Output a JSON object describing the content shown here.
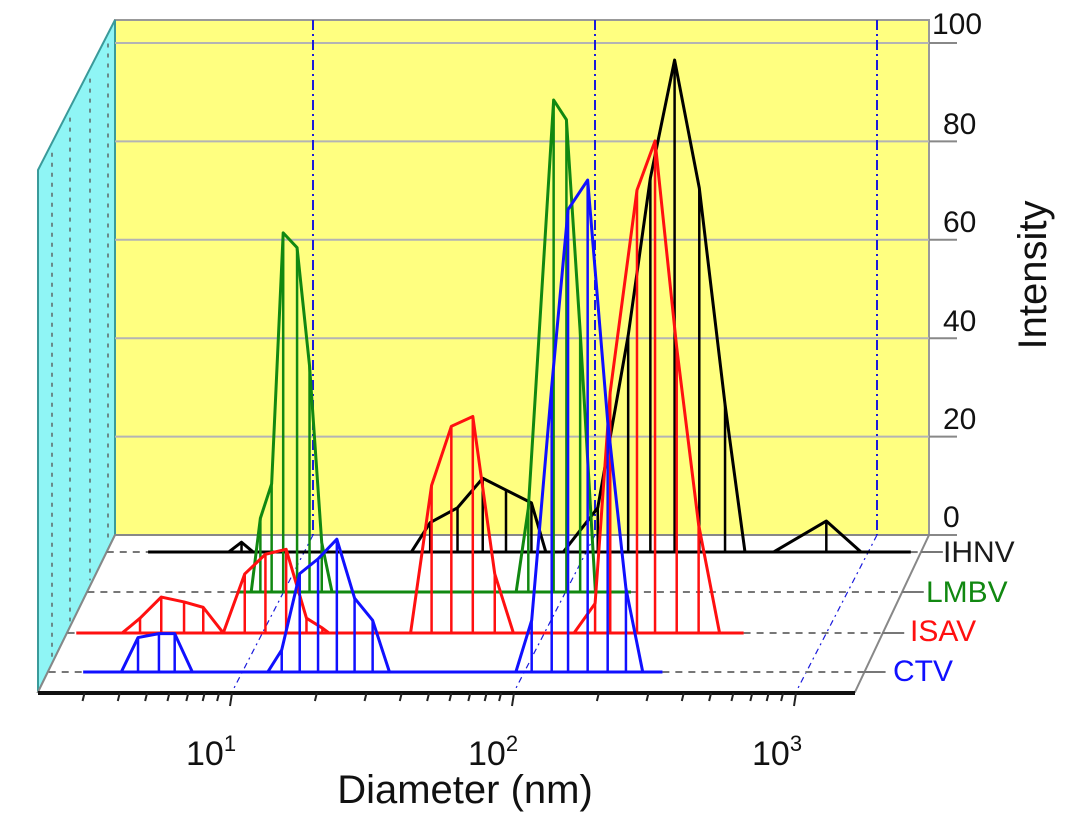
{
  "chart_data": {
    "type": "line",
    "subtype": "3d-waterfall-stem",
    "xlabel": "Diameter (nm)",
    "ylabel": "Intensity",
    "xscale": "log",
    "xlim": [
      2,
      2000
    ],
    "ylim": [
      0,
      100
    ],
    "yticks": [
      "0",
      "20",
      "40",
      "60",
      "80",
      "100"
    ],
    "xticks": [
      {
        "value": 10,
        "base": "10",
        "exp": "1"
      },
      {
        "value": 100,
        "base": "10",
        "exp": "2"
      },
      {
        "value": 1000,
        "base": "10",
        "exp": "3"
      }
    ],
    "grid": true,
    "legend_placement": "right, beside each series baseline",
    "colors": {
      "wall": "#ffff80",
      "side_wall": "#8ff5f5",
      "grid": "#b4b4b4",
      "decade_lines": "#1a1adc"
    },
    "series": [
      {
        "name": "IHNV",
        "color": "#000000",
        "points": [
          [
            2.8,
            0
          ],
          [
            5.4,
            0
          ],
          [
            6.0,
            2
          ],
          [
            6.6,
            0
          ],
          [
            24,
            0
          ],
          [
            28,
            6
          ],
          [
            35,
            9
          ],
          [
            43,
            15
          ],
          [
            52,
            12.6
          ],
          [
            64,
            10
          ],
          [
            72,
            0
          ],
          [
            83,
            0
          ],
          [
            110,
            9
          ],
          [
            141,
            44
          ],
          [
            169,
            76
          ],
          [
            206,
            100
          ],
          [
            252,
            74
          ],
          [
            311,
            30
          ],
          [
            366,
            0
          ],
          [
            462,
            0
          ],
          [
            711,
            6.3
          ],
          [
            944,
            0
          ],
          [
            1416,
            0
          ]
        ]
      },
      {
        "name": "LMBV",
        "color": "#118811",
        "points": [
          [
            6.9,
            0
          ],
          [
            7.7,
            0
          ],
          [
            8.3,
            15
          ],
          [
            9.1,
            22
          ],
          [
            10,
            73
          ],
          [
            11.2,
            70
          ],
          [
            12.4,
            46
          ],
          [
            13.7,
            10
          ],
          [
            14.9,
            0
          ],
          [
            67,
            0
          ],
          [
            74,
            17
          ],
          [
            91,
            100
          ],
          [
            101,
            96
          ],
          [
            113,
            53
          ],
          [
            128,
            0
          ],
          [
            171,
            0
          ]
        ]
      },
      {
        "name": "ISAV",
        "color": "#ff1010",
        "points": [
          [
            2.2,
            0
          ],
          [
            3.2,
            0
          ],
          [
            3.7,
            3
          ],
          [
            4.4,
            7.3
          ],
          [
            5.3,
            6.3
          ],
          [
            6.2,
            5.2
          ],
          [
            7.3,
            0
          ],
          [
            8.7,
            12
          ],
          [
            10.3,
            16
          ],
          [
            12.2,
            17
          ],
          [
            14.4,
            3
          ],
          [
            16.4,
            1
          ],
          [
            17.3,
            0
          ],
          [
            33.7,
            0
          ],
          [
            40,
            30
          ],
          [
            47,
            42
          ],
          [
            56,
            44
          ],
          [
            67,
            12
          ],
          [
            78,
            0
          ],
          [
            128,
            0
          ],
          [
            152,
            6
          ],
          [
            172,
            49
          ],
          [
            214,
            90
          ],
          [
            248,
            100
          ],
          [
            296,
            58
          ],
          [
            354,
            22
          ],
          [
            420,
            0
          ],
          [
            511,
            0
          ]
        ]
      },
      {
        "name": "CTV",
        "color": "#1010ff",
        "points": [
          [
            2.75,
            0
          ],
          [
            3.75,
            0
          ],
          [
            4.3,
            7
          ],
          [
            5.1,
            7.8
          ],
          [
            5.8,
            7.8
          ],
          [
            6.7,
            0
          ],
          [
            12.4,
            0
          ],
          [
            13.9,
            4.5
          ],
          [
            16.1,
            20
          ],
          [
            18.7,
            23
          ],
          [
            21.8,
            27
          ],
          [
            25.2,
            15
          ],
          [
            29.2,
            10.5
          ],
          [
            33.5,
            0
          ],
          [
            94,
            0
          ],
          [
            107,
            10.5
          ],
          [
            126,
            58
          ],
          [
            144,
            94
          ],
          [
            169,
            100
          ],
          [
            199,
            51
          ],
          [
            231,
            17
          ],
          [
            265,
            0
          ],
          [
            311,
            0
          ]
        ]
      }
    ]
  }
}
